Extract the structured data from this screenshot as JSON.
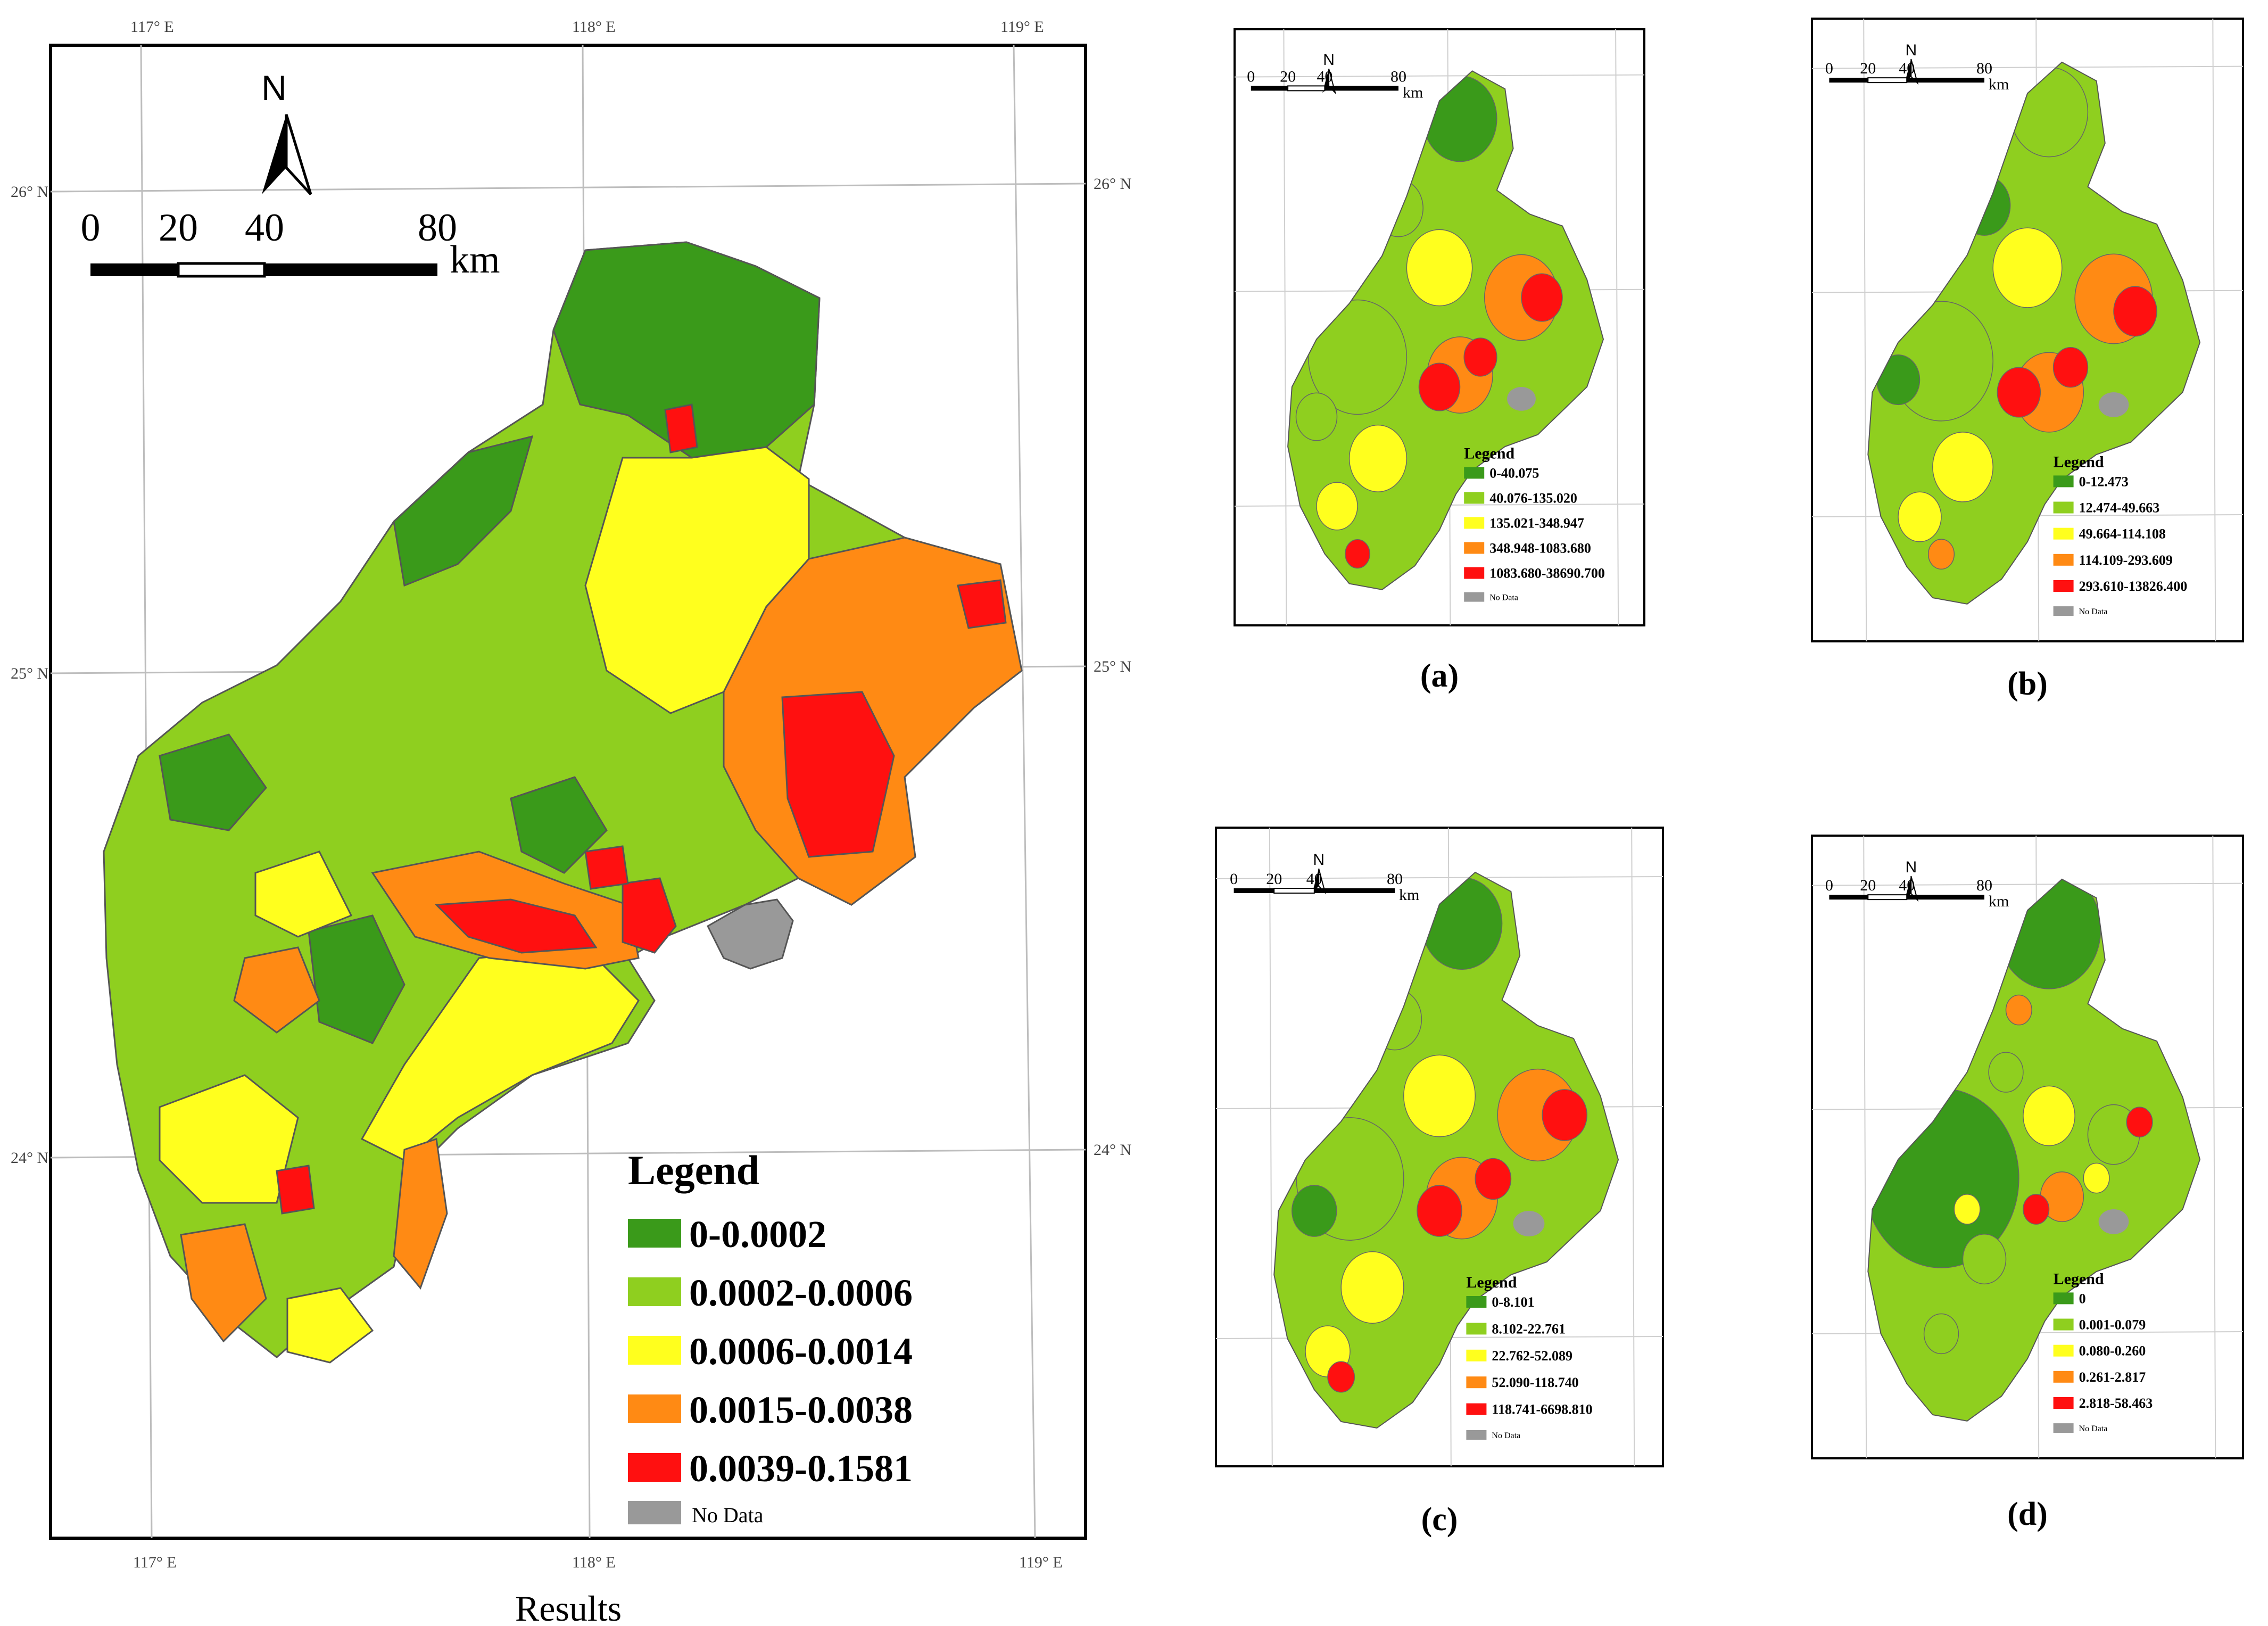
{
  "figure": {
    "main_caption": "Results",
    "north_label": "N",
    "no_data_label": "No Data",
    "legend_title": "Legend",
    "scale": {
      "ticks": [
        "0",
        "20",
        "40",
        "80"
      ],
      "unit": "km"
    },
    "coord_labels": {
      "top": [
        "117° E",
        "118° E",
        "119° E"
      ],
      "bottom": [
        "117° E",
        "118° E",
        "119° E"
      ],
      "left": [
        "26° N",
        "25° N",
        "24° N"
      ],
      "right": [
        "26° N",
        "25° N",
        "24° N"
      ]
    }
  },
  "colors": {
    "class1": "#3a9a1a",
    "class2": "#8fcf1f",
    "class3": "#ffff1e",
    "class4": "#ff8a14",
    "class5": "#ff1010",
    "no_data": "#999999"
  },
  "panels": {
    "main": {
      "caption": "Results",
      "legend": [
        "0-0.0002",
        "0.0002-0.0006",
        "0.0006-0.0014",
        "0.0015-0.0038",
        "0.0039-0.1581"
      ]
    },
    "a": {
      "caption": "(a)",
      "legend": [
        "0-40.075",
        "40.076-135.020",
        "135.021-348.947",
        "348.948-1083.680",
        "1083.680-38690.700"
      ]
    },
    "b": {
      "caption": "(b)",
      "legend": [
        "0-12.473",
        "12.474-49.663",
        "49.664-114.108",
        "114.109-293.609",
        "293.610-13826.400"
      ]
    },
    "c": {
      "caption": "(c)",
      "legend": [
        "0-8.101",
        "8.102-22.761",
        "22.762-52.089",
        "52.090-118.740",
        "118.741-6698.810"
      ]
    },
    "d": {
      "caption": "(d)",
      "legend": [
        "0",
        "0.001-0.079",
        "0.080-0.260",
        "0.261-2.817",
        "2.818-58.463"
      ]
    }
  }
}
